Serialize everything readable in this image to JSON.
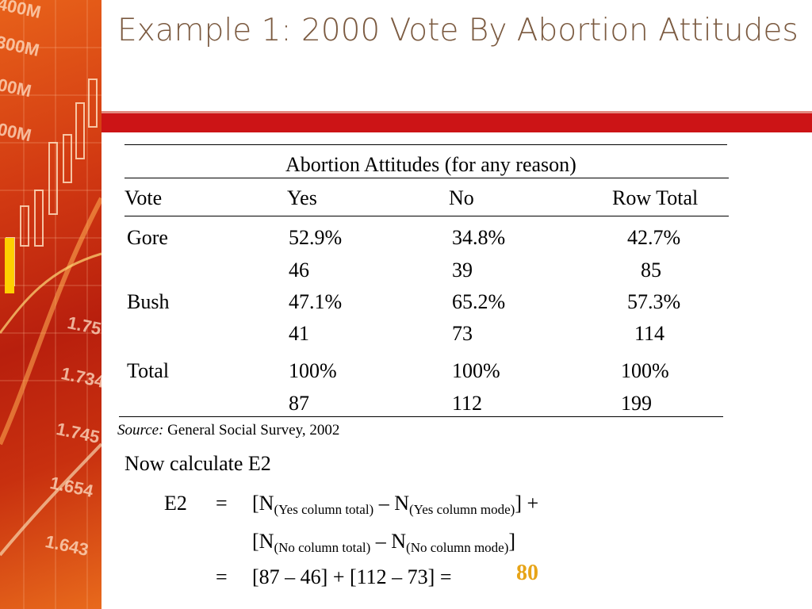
{
  "slide": {
    "title": "Example 1: 2000 Vote By Abortion Attitudes"
  },
  "side_panel": {
    "numbers": [
      "400M",
      "300M",
      "00M",
      "00M",
      "1.75",
      "1.734",
      "1.745",
      "1.654",
      "1.643"
    ]
  },
  "table": {
    "header_group": "Abortion Attitudes (for any reason)",
    "columns": [
      "Vote",
      "Yes",
      "No",
      "Row Total"
    ],
    "rows": [
      {
        "label": "Gore",
        "pct": [
          "52.9%",
          "34.8%",
          "42.7%"
        ],
        "n": [
          "46",
          "39",
          "85"
        ]
      },
      {
        "label": "Bush",
        "pct": [
          "47.1%",
          "65.2%",
          "57.3%"
        ],
        "n": [
          "41",
          "73",
          "114"
        ]
      },
      {
        "label": "Total",
        "pct": [
          "100%",
          "100%",
          "100%"
        ],
        "n": [
          "87",
          "112",
          "199"
        ]
      }
    ],
    "source_label": "Source:",
    "source_text": " General Social Survey, 2002"
  },
  "calc": {
    "prompt": "Now calculate E2",
    "lhs": "E2",
    "eq1": "=",
    "line1_a": "[N",
    "line1_sub1": "(Yes column total)",
    "line1_b": " – N",
    "line1_sub2": "(Yes column mode)",
    "line1_c": "] +",
    "line2_a": "[N",
    "line2_sub1": "(No column total)",
    "line2_b": " – N",
    "line2_sub2": "(No column  mode)",
    "line2_c": "]",
    "eq2": "=",
    "line3": "[87 – 46] + [112 – 73] =",
    "answer": "80"
  }
}
